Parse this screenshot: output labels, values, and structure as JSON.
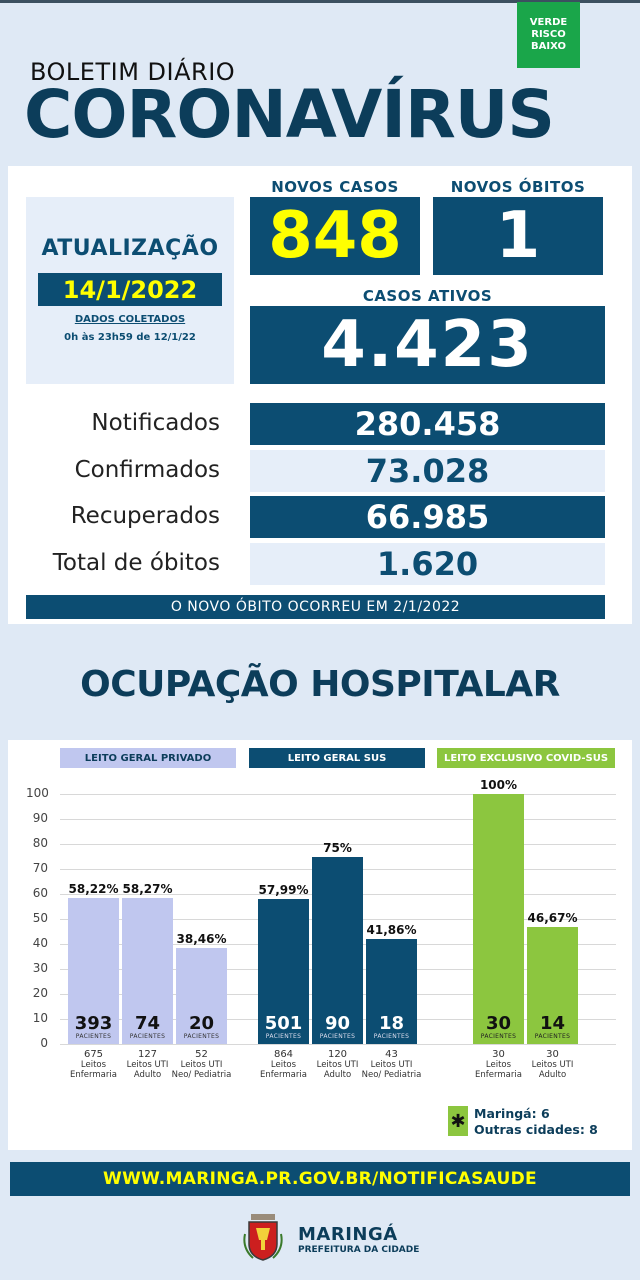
{
  "risk_badge": {
    "line1": "VERDE",
    "line2": "RISCO",
    "line3": "BAIXO"
  },
  "header": {
    "subtitle": "BOLETIM DIÁRIO",
    "title": "CORONAVÍRUS"
  },
  "update": {
    "label": "ATUALIZAÇÃO",
    "date": "14/1/2022",
    "collected_label": "DADOS COLETADOS",
    "collected_range": "0h às 23h59 de 12/1/22"
  },
  "new_cases": {
    "label": "NOVOS CASOS",
    "value": "848"
  },
  "new_deaths": {
    "label": "NOVOS ÓBITOS",
    "value": "1"
  },
  "active_cases": {
    "label": "CASOS ATIVOS",
    "value": "4.423"
  },
  "stats": [
    {
      "label": "Notificados",
      "value": "280.458"
    },
    {
      "label": "Confirmados",
      "value": "73.028"
    },
    {
      "label": "Recuperados",
      "value": "66.985"
    },
    {
      "label": "Total de óbitos",
      "value": "1.620"
    }
  ],
  "death_note": "O NOVO ÓBITO OCORREU EM 2/1/2022",
  "hospital_title": "OCUPAÇÃO HOSPITALAR",
  "colors": {
    "navy": "#0c4d72",
    "private": "#c0c7ef",
    "covid": "#8cc63f",
    "yellow": "#ffff00"
  },
  "chart_data": {
    "type": "bar",
    "ylim": [
      0,
      100
    ],
    "yticks": [
      "100",
      "90",
      "80",
      "70",
      "60",
      "50",
      "40",
      "30",
      "20",
      "10",
      "0"
    ],
    "patients_label": "PACIENTES",
    "groups": [
      {
        "name": "LEITO GERAL PRIVADO",
        "bars": [
          {
            "pct": 58.22,
            "pct_label": "58,22%",
            "patients": "393",
            "beds": "675",
            "bed_type": "Leitos Enfermaria"
          },
          {
            "pct": 58.27,
            "pct_label": "58,27%",
            "patients": "74",
            "beds": "127",
            "bed_type": "Leitos UTI Adulto"
          },
          {
            "pct": 38.46,
            "pct_label": "38,46%",
            "patients": "20",
            "beds": "52",
            "bed_type": "Leitos UTI Neo/ Pediatria"
          }
        ]
      },
      {
        "name": "LEITO GERAL SUS",
        "bars": [
          {
            "pct": 57.99,
            "pct_label": "57,99%",
            "patients": "501",
            "beds": "864",
            "bed_type": "Leitos Enfermaria"
          },
          {
            "pct": 75,
            "pct_label": "75%",
            "patients": "90",
            "beds": "120",
            "bed_type": "Leitos UTI Adulto"
          },
          {
            "pct": 41.86,
            "pct_label": "41,86%",
            "patients": "18",
            "beds": "43",
            "bed_type": "Leitos UTI Neo/ Pediatria"
          }
        ]
      },
      {
        "name": "LEITO EXCLUSIVO COVID-SUS",
        "bars": [
          {
            "pct": 100,
            "pct_label": "100%",
            "patients": "30",
            "beds": "30",
            "bed_type": "Leitos Enfermaria"
          },
          {
            "pct": 46.67,
            "pct_label": "46,67%",
            "patients": "14",
            "beds": "30",
            "bed_type": "Leitos UTI Adulto"
          }
        ]
      }
    ]
  },
  "covid_note": {
    "line1": "Maringá: 6",
    "line2": "Outras cidades: 8"
  },
  "website": "WWW.MARINGA.PR.GOV.BR/NOTIFICASAUDE",
  "footer": {
    "city": "MARINGÁ",
    "org": "PREFEITURA DA CIDADE"
  }
}
